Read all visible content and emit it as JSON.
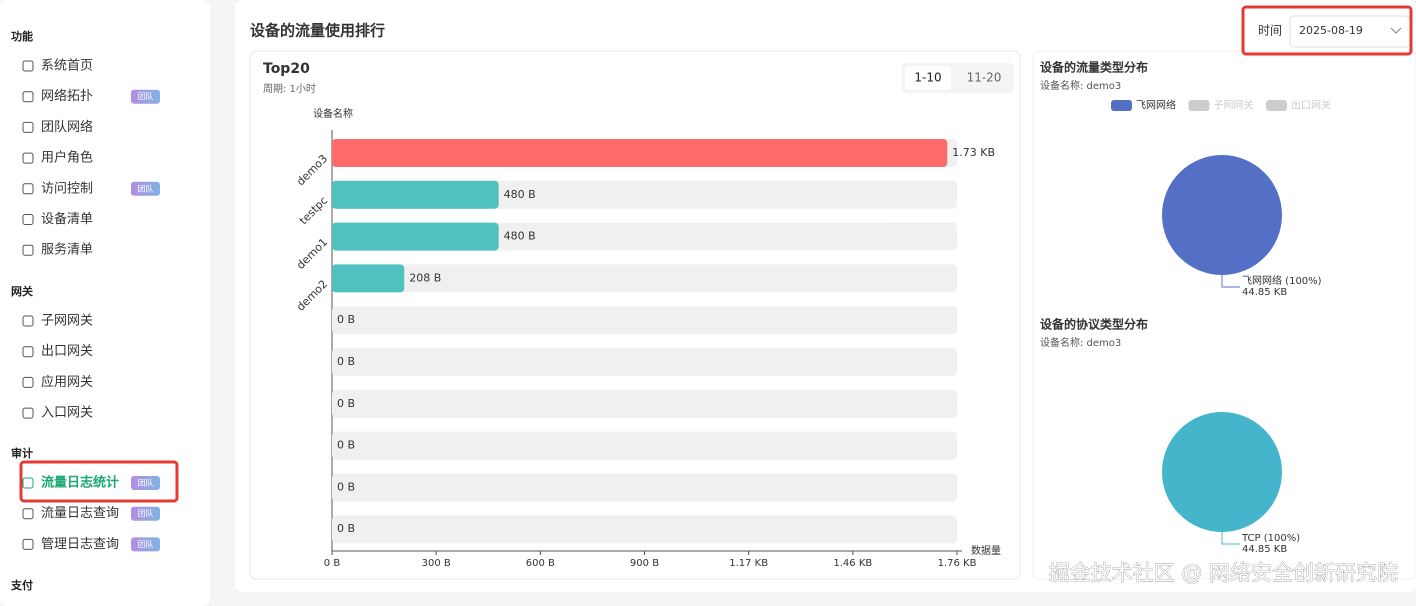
{
  "sidebar": {
    "sections": [
      {
        "title": "功能",
        "items": [
          {
            "label": "系统首页"
          },
          {
            "label": "网络拓扑",
            "badge": "团队"
          },
          {
            "label": "团队网络"
          },
          {
            "label": "用户角色"
          },
          {
            "label": "访问控制",
            "badge": "团队"
          },
          {
            "label": "设备清单"
          },
          {
            "label": "服务清单"
          }
        ]
      },
      {
        "title": "网关",
        "items": [
          {
            "label": "子网网关"
          },
          {
            "label": "出口网关"
          },
          {
            "label": "应用网关"
          },
          {
            "label": "入口网关"
          }
        ]
      },
      {
        "title": "审计",
        "items": [
          {
            "label": "流量日志统计",
            "badge": "团队",
            "active": true
          },
          {
            "label": "流量日志查询",
            "badge": "团队"
          },
          {
            "label": "管理日志查询",
            "badge": "团队"
          }
        ]
      },
      {
        "title": "支付",
        "items": []
      }
    ]
  },
  "header": {
    "title": "设备的流量使用排行",
    "time_label": "时间",
    "date": "2025-08-19"
  },
  "card": {
    "title": "Top20",
    "period": "周期: 1小时",
    "tabs": [
      "1-10",
      "11-20"
    ]
  },
  "chart_data": [
    {
      "type": "bar",
      "orientation": "horizontal",
      "y_label": "设备名称",
      "x_label": "数据量",
      "categories": [
        "demo3",
        "testpc",
        "demo1",
        "demo2",
        null,
        null,
        null,
        null,
        null,
        null
      ],
      "values": [
        1772,
        480,
        480,
        208,
        0,
        0,
        0,
        0,
        0,
        0
      ],
      "value_labels": [
        "1.73 KB",
        "480 B",
        "480 B",
        "208 B",
        "0 B",
        "0 B",
        "0 B",
        "0 B",
        "0 B",
        "0 B"
      ],
      "colors": [
        "#ff6b6b",
        "#4fc1be",
        "#4fc1be",
        "#4fc1be",
        "#4fc1be",
        "#4fc1be",
        "#4fc1be",
        "#4fc1be",
        "#4fc1be",
        "#4fc1be"
      ],
      "track_color": "#f0f0f0",
      "xlim": [
        0,
        1800
      ],
      "xticks": [
        {
          "value": 0,
          "label": "0 B"
        },
        {
          "value": 300,
          "label": "300 B"
        },
        {
          "value": 600,
          "label": "600 B"
        },
        {
          "value": 900,
          "label": "900 B"
        },
        {
          "value": 1200,
          "label": "1.17 KB"
        },
        {
          "value": 1500,
          "label": "1.46 KB"
        },
        {
          "value": 1800,
          "label": "1.76 KB"
        }
      ]
    },
    {
      "type": "pie",
      "title": "设备的流量类型分布",
      "subtitle": "设备名称: demo3",
      "legend": [
        {
          "name": "飞网网络",
          "color": "#5470c6"
        },
        {
          "name": "子网网关",
          "color": "#cccccc"
        },
        {
          "name": "出口网关",
          "color": "#cccccc"
        }
      ],
      "slices": [
        {
          "value": 45926,
          "color": "#5470c6",
          "label": "飞网网络 (100%)",
          "value_label": "44.85 KB"
        }
      ]
    },
    {
      "type": "pie",
      "title": "设备的协议类型分布",
      "subtitle": "设备名称: demo3",
      "slices": [
        {
          "value": 45926,
          "color": "#45b5cc",
          "label": "TCP (100%)",
          "value_label": "44.85 KB"
        }
      ]
    }
  ],
  "watermark": "掘金技术社区 @ 网络安全创新研究院"
}
